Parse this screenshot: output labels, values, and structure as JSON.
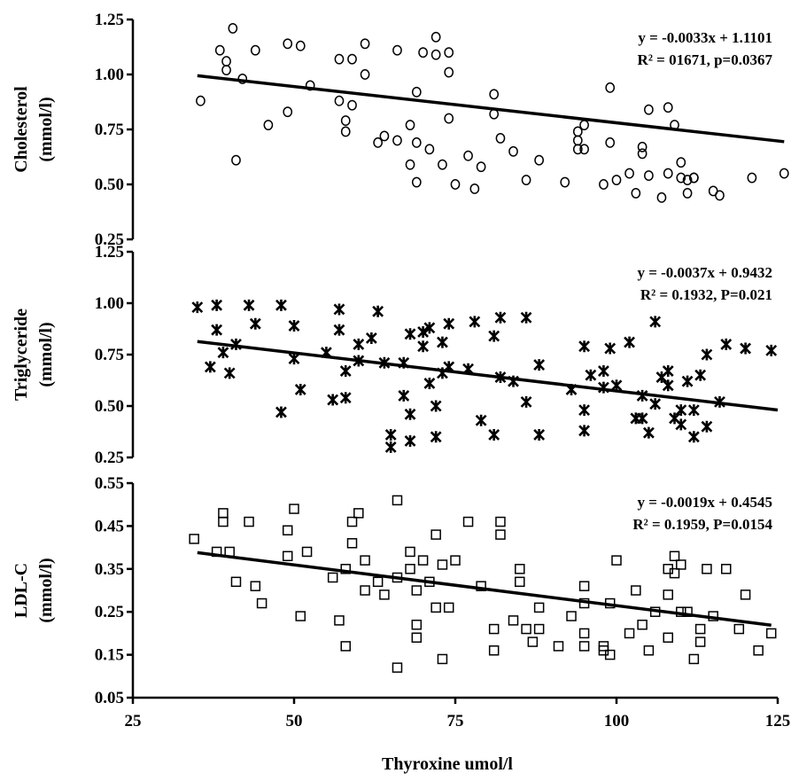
{
  "chart_data": [
    {
      "type": "scatter",
      "ylabel": "Cholesterol (mmol/l)",
      "ylabel_lines": [
        "Cholesterol",
        "(mmol/l)"
      ],
      "yticks": [
        "1.25",
        "1.00",
        "0.75",
        "0.50",
        "0.25"
      ],
      "ylim": [
        0.25,
        1.25
      ],
      "marker": "circle",
      "equation": "y = -0.0033x + 1.1101",
      "r2_text": "R² = 01671, p=0.0367",
      "trendline": {
        "slope": -0.0033,
        "intercept": 1.1101,
        "x_range": [
          35,
          126
        ]
      },
      "points": [
        [
          35.5,
          0.88
        ],
        [
          38.5,
          1.11
        ],
        [
          39.5,
          1.02
        ],
        [
          39.5,
          1.06
        ],
        [
          40.5,
          1.21
        ],
        [
          42,
          0.98
        ],
        [
          41,
          0.61
        ],
        [
          44,
          1.11
        ],
        [
          46,
          0.77
        ],
        [
          49,
          1.14
        ],
        [
          49,
          0.83
        ],
        [
          51,
          1.13
        ],
        [
          52.5,
          0.95
        ],
        [
          57,
          0.88
        ],
        [
          57,
          1.07
        ],
        [
          58,
          0.79
        ],
        [
          58,
          0.74
        ],
        [
          59,
          1.07
        ],
        [
          59,
          0.86
        ],
        [
          61,
          1.14
        ],
        [
          61,
          1.0
        ],
        [
          63,
          0.69
        ],
        [
          64,
          0.72
        ],
        [
          66,
          1.11
        ],
        [
          66,
          0.7
        ],
        [
          68,
          0.59
        ],
        [
          68,
          0.77
        ],
        [
          69,
          0.92
        ],
        [
          69,
          0.69
        ],
        [
          69,
          0.51
        ],
        [
          70,
          1.1
        ],
        [
          71,
          0.66
        ],
        [
          72,
          1.17
        ],
        [
          72,
          1.09
        ],
        [
          73,
          0.59
        ],
        [
          74,
          0.8
        ],
        [
          74,
          1.1
        ],
        [
          74,
          1.01
        ],
        [
          75,
          0.5
        ],
        [
          77,
          0.63
        ],
        [
          78,
          0.48
        ],
        [
          79,
          0.58
        ],
        [
          81,
          0.91
        ],
        [
          81,
          0.82
        ],
        [
          82,
          0.71
        ],
        [
          84,
          0.65
        ],
        [
          86,
          0.52
        ],
        [
          88,
          0.61
        ],
        [
          92,
          0.51
        ],
        [
          94,
          0.66
        ],
        [
          94,
          0.7
        ],
        [
          94,
          0.74
        ],
        [
          95,
          0.66
        ],
        [
          95,
          0.77
        ],
        [
          98,
          0.5
        ],
        [
          99,
          0.94
        ],
        [
          99,
          0.69
        ],
        [
          100,
          0.52
        ],
        [
          102,
          0.55
        ],
        [
          103,
          0.46
        ],
        [
          104,
          0.67
        ],
        [
          104,
          0.64
        ],
        [
          105,
          0.84
        ],
        [
          105,
          0.54
        ],
        [
          107,
          0.44
        ],
        [
          108,
          0.55
        ],
        [
          108,
          0.85
        ],
        [
          109,
          0.77
        ],
        [
          110,
          0.6
        ],
        [
          110,
          0.53
        ],
        [
          111,
          0.46
        ],
        [
          111,
          0.52
        ],
        [
          112,
          0.53
        ],
        [
          112,
          0.53
        ],
        [
          115,
          0.47
        ],
        [
          116,
          0.45
        ],
        [
          121,
          0.53
        ],
        [
          126,
          0.55
        ]
      ]
    },
    {
      "type": "scatter",
      "ylabel": "Triglyceride (mmol/l)",
      "ylabel_lines": [
        "Triglyceride",
        "(mmol/l)"
      ],
      "yticks": [
        "1.25",
        "1.00",
        "0.75",
        "0.50",
        "0.25"
      ],
      "ylim": [
        0.25,
        1.25
      ],
      "marker": "star",
      "equation": "y = -0.0037x + 0.9432",
      "r2_text": "R² = 0.1932, P=0.021",
      "trendline": {
        "slope": -0.0037,
        "intercept": 0.9432,
        "x_range": [
          35,
          125
        ]
      },
      "points": [
        [
          35,
          0.98
        ],
        [
          37,
          0.69
        ],
        [
          38,
          0.99
        ],
        [
          38,
          0.87
        ],
        [
          39,
          0.76
        ],
        [
          40,
          0.66
        ],
        [
          41,
          0.8
        ],
        [
          43,
          0.99
        ],
        [
          44,
          0.9
        ],
        [
          48,
          0.99
        ],
        [
          48,
          0.47
        ],
        [
          50,
          0.89
        ],
        [
          50,
          0.73
        ],
        [
          51,
          0.58
        ],
        [
          55,
          0.76
        ],
        [
          56,
          0.53
        ],
        [
          57,
          0.97
        ],
        [
          57,
          0.87
        ],
        [
          58,
          0.54
        ],
        [
          58,
          0.67
        ],
        [
          60,
          0.8
        ],
        [
          60,
          0.72
        ],
        [
          62,
          0.83
        ],
        [
          63,
          0.96
        ],
        [
          64,
          0.71
        ],
        [
          65,
          0.36
        ],
        [
          65,
          0.3
        ],
        [
          67,
          0.71
        ],
        [
          67,
          0.55
        ],
        [
          68,
          0.85
        ],
        [
          68,
          0.46
        ],
        [
          68,
          0.33
        ],
        [
          70,
          0.79
        ],
        [
          70,
          0.86
        ],
        [
          71,
          0.88
        ],
        [
          71,
          0.61
        ],
        [
          72,
          0.5
        ],
        [
          72,
          0.35
        ],
        [
          73,
          0.66
        ],
        [
          73,
          0.81
        ],
        [
          74,
          0.69
        ],
        [
          74,
          0.9
        ],
        [
          77,
          0.68
        ],
        [
          78,
          0.91
        ],
        [
          79,
          0.43
        ],
        [
          81,
          0.84
        ],
        [
          81,
          0.36
        ],
        [
          82,
          0.64
        ],
        [
          82,
          0.93
        ],
        [
          84,
          0.62
        ],
        [
          86,
          0.52
        ],
        [
          86,
          0.93
        ],
        [
          88,
          0.7
        ],
        [
          88,
          0.36
        ],
        [
          93,
          0.58
        ],
        [
          95,
          0.48
        ],
        [
          95,
          0.38
        ],
        [
          95,
          0.79
        ],
        [
          96,
          0.65
        ],
        [
          98,
          0.67
        ],
        [
          98,
          0.59
        ],
        [
          99,
          0.78
        ],
        [
          100,
          0.6
        ],
        [
          102,
          0.81
        ],
        [
          103,
          0.44
        ],
        [
          104,
          0.55
        ],
        [
          104,
          0.44
        ],
        [
          105,
          0.37
        ],
        [
          106,
          0.51
        ],
        [
          106,
          0.91
        ],
        [
          107,
          0.64
        ],
        [
          108,
          0.67
        ],
        [
          108,
          0.6
        ],
        [
          109,
          0.44
        ],
        [
          110,
          0.48
        ],
        [
          110,
          0.41
        ],
        [
          111,
          0.62
        ],
        [
          112,
          0.35
        ],
        [
          112,
          0.48
        ],
        [
          113,
          0.65
        ],
        [
          114,
          0.75
        ],
        [
          114,
          0.4
        ],
        [
          116,
          0.52
        ],
        [
          117,
          0.8
        ],
        [
          120,
          0.78
        ],
        [
          124,
          0.77
        ]
      ]
    },
    {
      "type": "scatter",
      "ylabel": "LDL-C (mmol/l)",
      "ylabel_lines": [
        "LDL-C",
        "(mmol/l)"
      ],
      "yticks": [
        "0.55",
        "0.45",
        "0.35",
        "0.25",
        "0.15",
        "0.05"
      ],
      "ylim": [
        0.05,
        0.55
      ],
      "marker": "square",
      "equation": "y = -0.0019x + 0.4545",
      "r2_text": "R² = 0.1959, P=0.0154",
      "trendline": {
        "slope": -0.0019,
        "intercept": 0.4545,
        "x_range": [
          35,
          124
        ]
      },
      "xlabel": "Thyroxine umol/l",
      "xticks": [
        "25",
        "50",
        "75",
        "100",
        "125"
      ],
      "xlim": [
        25,
        125
      ],
      "points": [
        [
          34.5,
          0.42
        ],
        [
          38,
          0.39
        ],
        [
          39,
          0.48
        ],
        [
          39,
          0.46
        ],
        [
          40,
          0.39
        ],
        [
          41,
          0.32
        ],
        [
          43,
          0.46
        ],
        [
          44,
          0.31
        ],
        [
          45,
          0.27
        ],
        [
          49,
          0.44
        ],
        [
          49,
          0.38
        ],
        [
          50,
          0.49
        ],
        [
          51,
          0.24
        ],
        [
          52,
          0.39
        ],
        [
          56,
          0.33
        ],
        [
          57,
          0.23
        ],
        [
          58,
          0.35
        ],
        [
          58,
          0.17
        ],
        [
          59,
          0.46
        ],
        [
          59,
          0.41
        ],
        [
          60,
          0.48
        ],
        [
          61,
          0.37
        ],
        [
          61,
          0.3
        ],
        [
          63,
          0.32
        ],
        [
          64,
          0.29
        ],
        [
          66,
          0.51
        ],
        [
          66,
          0.33
        ],
        [
          66,
          0.12
        ],
        [
          68,
          0.39
        ],
        [
          68,
          0.35
        ],
        [
          69,
          0.3
        ],
        [
          69,
          0.22
        ],
        [
          69,
          0.19
        ],
        [
          70,
          0.37
        ],
        [
          71,
          0.32
        ],
        [
          72,
          0.43
        ],
        [
          72,
          0.26
        ],
        [
          73,
          0.36
        ],
        [
          73,
          0.14
        ],
        [
          74,
          0.26
        ],
        [
          75,
          0.37
        ],
        [
          77,
          0.46
        ],
        [
          79,
          0.31
        ],
        [
          81,
          0.21
        ],
        [
          81,
          0.16
        ],
        [
          82,
          0.46
        ],
        [
          82,
          0.43
        ],
        [
          84,
          0.23
        ],
        [
          85,
          0.35
        ],
        [
          85,
          0.32
        ],
        [
          86,
          0.21
        ],
        [
          87,
          0.18
        ],
        [
          88,
          0.21
        ],
        [
          88,
          0.26
        ],
        [
          91,
          0.17
        ],
        [
          93,
          0.24
        ],
        [
          95,
          0.31
        ],
        [
          95,
          0.27
        ],
        [
          95,
          0.2
        ],
        [
          95,
          0.17
        ],
        [
          98,
          0.17
        ],
        [
          98,
          0.16
        ],
        [
          99,
          0.27
        ],
        [
          99,
          0.15
        ],
        [
          100,
          0.37
        ],
        [
          102,
          0.2
        ],
        [
          103,
          0.3
        ],
        [
          104,
          0.22
        ],
        [
          105,
          0.16
        ],
        [
          106,
          0.25
        ],
        [
          108,
          0.35
        ],
        [
          108,
          0.29
        ],
        [
          108,
          0.19
        ],
        [
          109,
          0.38
        ],
        [
          109,
          0.34
        ],
        [
          110,
          0.25
        ],
        [
          110,
          0.36
        ],
        [
          111,
          0.25
        ],
        [
          112,
          0.14
        ],
        [
          113,
          0.21
        ],
        [
          113,
          0.18
        ],
        [
          114,
          0.35
        ],
        [
          115,
          0.24
        ],
        [
          117,
          0.35
        ],
        [
          119,
          0.21
        ],
        [
          120,
          0.29
        ],
        [
          122,
          0.16
        ],
        [
          124,
          0.2
        ]
      ]
    }
  ]
}
